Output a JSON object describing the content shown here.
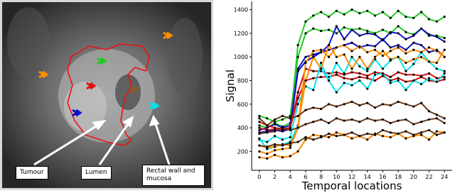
{
  "figure": {
    "labels": [
      "Tumour",
      "Lumen",
      "Rectal wall and mucosa"
    ]
  },
  "chart_data": {
    "type": "line",
    "xlabel": "Temporal locations",
    "ylabel": "Signal",
    "x": [
      0,
      1,
      2,
      3,
      4,
      5,
      6,
      7,
      8,
      9,
      10,
      11,
      12,
      13,
      14,
      15,
      16,
      17,
      18,
      19,
      20,
      21,
      22,
      23,
      24
    ],
    "xlim": [
      -1,
      25
    ],
    "xticks": [
      0,
      2,
      4,
      6,
      8,
      10,
      12,
      14,
      16,
      18,
      20,
      22,
      24
    ],
    "ylim": [
      40,
      1470
    ],
    "yticks": [
      200,
      400,
      600,
      800,
      1000,
      1200,
      1400
    ],
    "marker_color": "#000000",
    "series": [
      {
        "color": "#22cc22",
        "values": [
          420,
          400,
          440,
          410,
          440,
          1100,
          1300,
          1350,
          1380,
          1340,
          1390,
          1360,
          1400,
          1370,
          1390,
          1350,
          1380,
          1330,
          1390,
          1340,
          1330,
          1380,
          1320,
          1300,
          1340
        ]
      },
      {
        "color": "#22cc22",
        "values": [
          500,
          480,
          450,
          470,
          500,
          1000,
          1200,
          1240,
          1220,
          1230,
          1200,
          1250,
          1230,
          1240,
          1220,
          1200,
          1230,
          1200,
          1260,
          1210,
          1190,
          1240,
          1180,
          1180,
          1160
        ]
      },
      {
        "color": "#1010cc",
        "values": [
          380,
          400,
          430,
          400,
          420,
          900,
          1000,
          1020,
          1040,
          1100,
          1260,
          1150,
          1230,
          1180,
          1200,
          1190,
          1140,
          1210,
          1200,
          1150,
          1180,
          1240,
          1190,
          1170,
          1130
        ]
      },
      {
        "color": "#1010cc",
        "values": [
          360,
          370,
          380,
          370,
          390,
          880,
          960,
          1000,
          1040,
          1060,
          1080,
          1100,
          1120,
          1080,
          1100,
          1090,
          1150,
          1080,
          1100,
          1060,
          1120,
          1100,
          1040,
          1060,
          1000
        ]
      },
      {
        "color": "#dd1010",
        "values": [
          450,
          420,
          400,
          390,
          400,
          700,
          900,
          880,
          880,
          860,
          870,
          850,
          870,
          860,
          840,
          870,
          860,
          830,
          870,
          850,
          850,
          840,
          860,
          820,
          830
        ]
      },
      {
        "color": "#dd1010",
        "values": [
          400,
          380,
          390,
          380,
          400,
          650,
          800,
          820,
          830,
          830,
          850,
          820,
          810,
          830,
          820,
          800,
          840,
          800,
          820,
          790,
          800,
          830,
          800,
          790,
          810
        ]
      },
      {
        "color": "#00e5ee",
        "values": [
          300,
          280,
          330,
          300,
          320,
          600,
          750,
          720,
          950,
          800,
          950,
          860,
          1000,
          920,
          880,
          980,
          900,
          970,
          1000,
          880,
          940,
          1040,
          960,
          900,
          880
        ]
      },
      {
        "color": "#00e5ee",
        "values": [
          310,
          220,
          240,
          260,
          280,
          420,
          800,
          1000,
          900,
          800,
          700,
          780,
          760,
          800,
          730,
          850,
          860,
          780,
          800,
          720,
          800,
          770,
          820,
          790,
          860
        ]
      },
      {
        "color": "#ff8c00",
        "values": [
          200,
          180,
          210,
          220,
          230,
          400,
          950,
          1050,
          1060,
          1000,
          1080,
          1100,
          1050,
          1090,
          1040,
          1060,
          1010,
          1050,
          1080,
          1030,
          1060,
          1040,
          1080,
          1050,
          1000
        ]
      },
      {
        "color": "#ff8c00",
        "values": [
          250,
          230,
          240,
          260,
          250,
          400,
          800,
          1000,
          900,
          1100,
          1000,
          1020,
          900,
          1000,
          900,
          1000,
          1050,
          980,
          1000,
          950,
          980,
          1000,
          960,
          950,
          1060
        ]
      },
      {
        "color": "#ff8c00",
        "values": [
          150,
          140,
          170,
          150,
          160,
          200,
          300,
          340,
          330,
          320,
          360,
          340,
          310,
          330,
          300,
          350,
          330,
          320,
          350,
          310,
          330,
          340,
          300,
          370,
          360
        ]
      },
      {
        "color": "#6b3a1a",
        "values": [
          480,
          420,
          470,
          500,
          480,
          500,
          550,
          570,
          560,
          600,
          580,
          600,
          620,
          590,
          610,
          570,
          600,
          590,
          620,
          600,
          580,
          610,
          540,
          510,
          480
        ]
      },
      {
        "color": "#6b3a1a",
        "values": [
          350,
          360,
          370,
          400,
          380,
          400,
          430,
          450,
          470,
          440,
          480,
          460,
          470,
          450,
          480,
          460,
          470,
          440,
          460,
          470,
          430,
          450,
          470,
          480,
          440
        ]
      },
      {
        "color": "#6b3a1a",
        "values": [
          250,
          240,
          260,
          250,
          270,
          280,
          320,
          300,
          320,
          350,
          330,
          340,
          360,
          330,
          350,
          340,
          380,
          360,
          350,
          370,
          340,
          360,
          380,
          340,
          360
        ]
      }
    ]
  }
}
